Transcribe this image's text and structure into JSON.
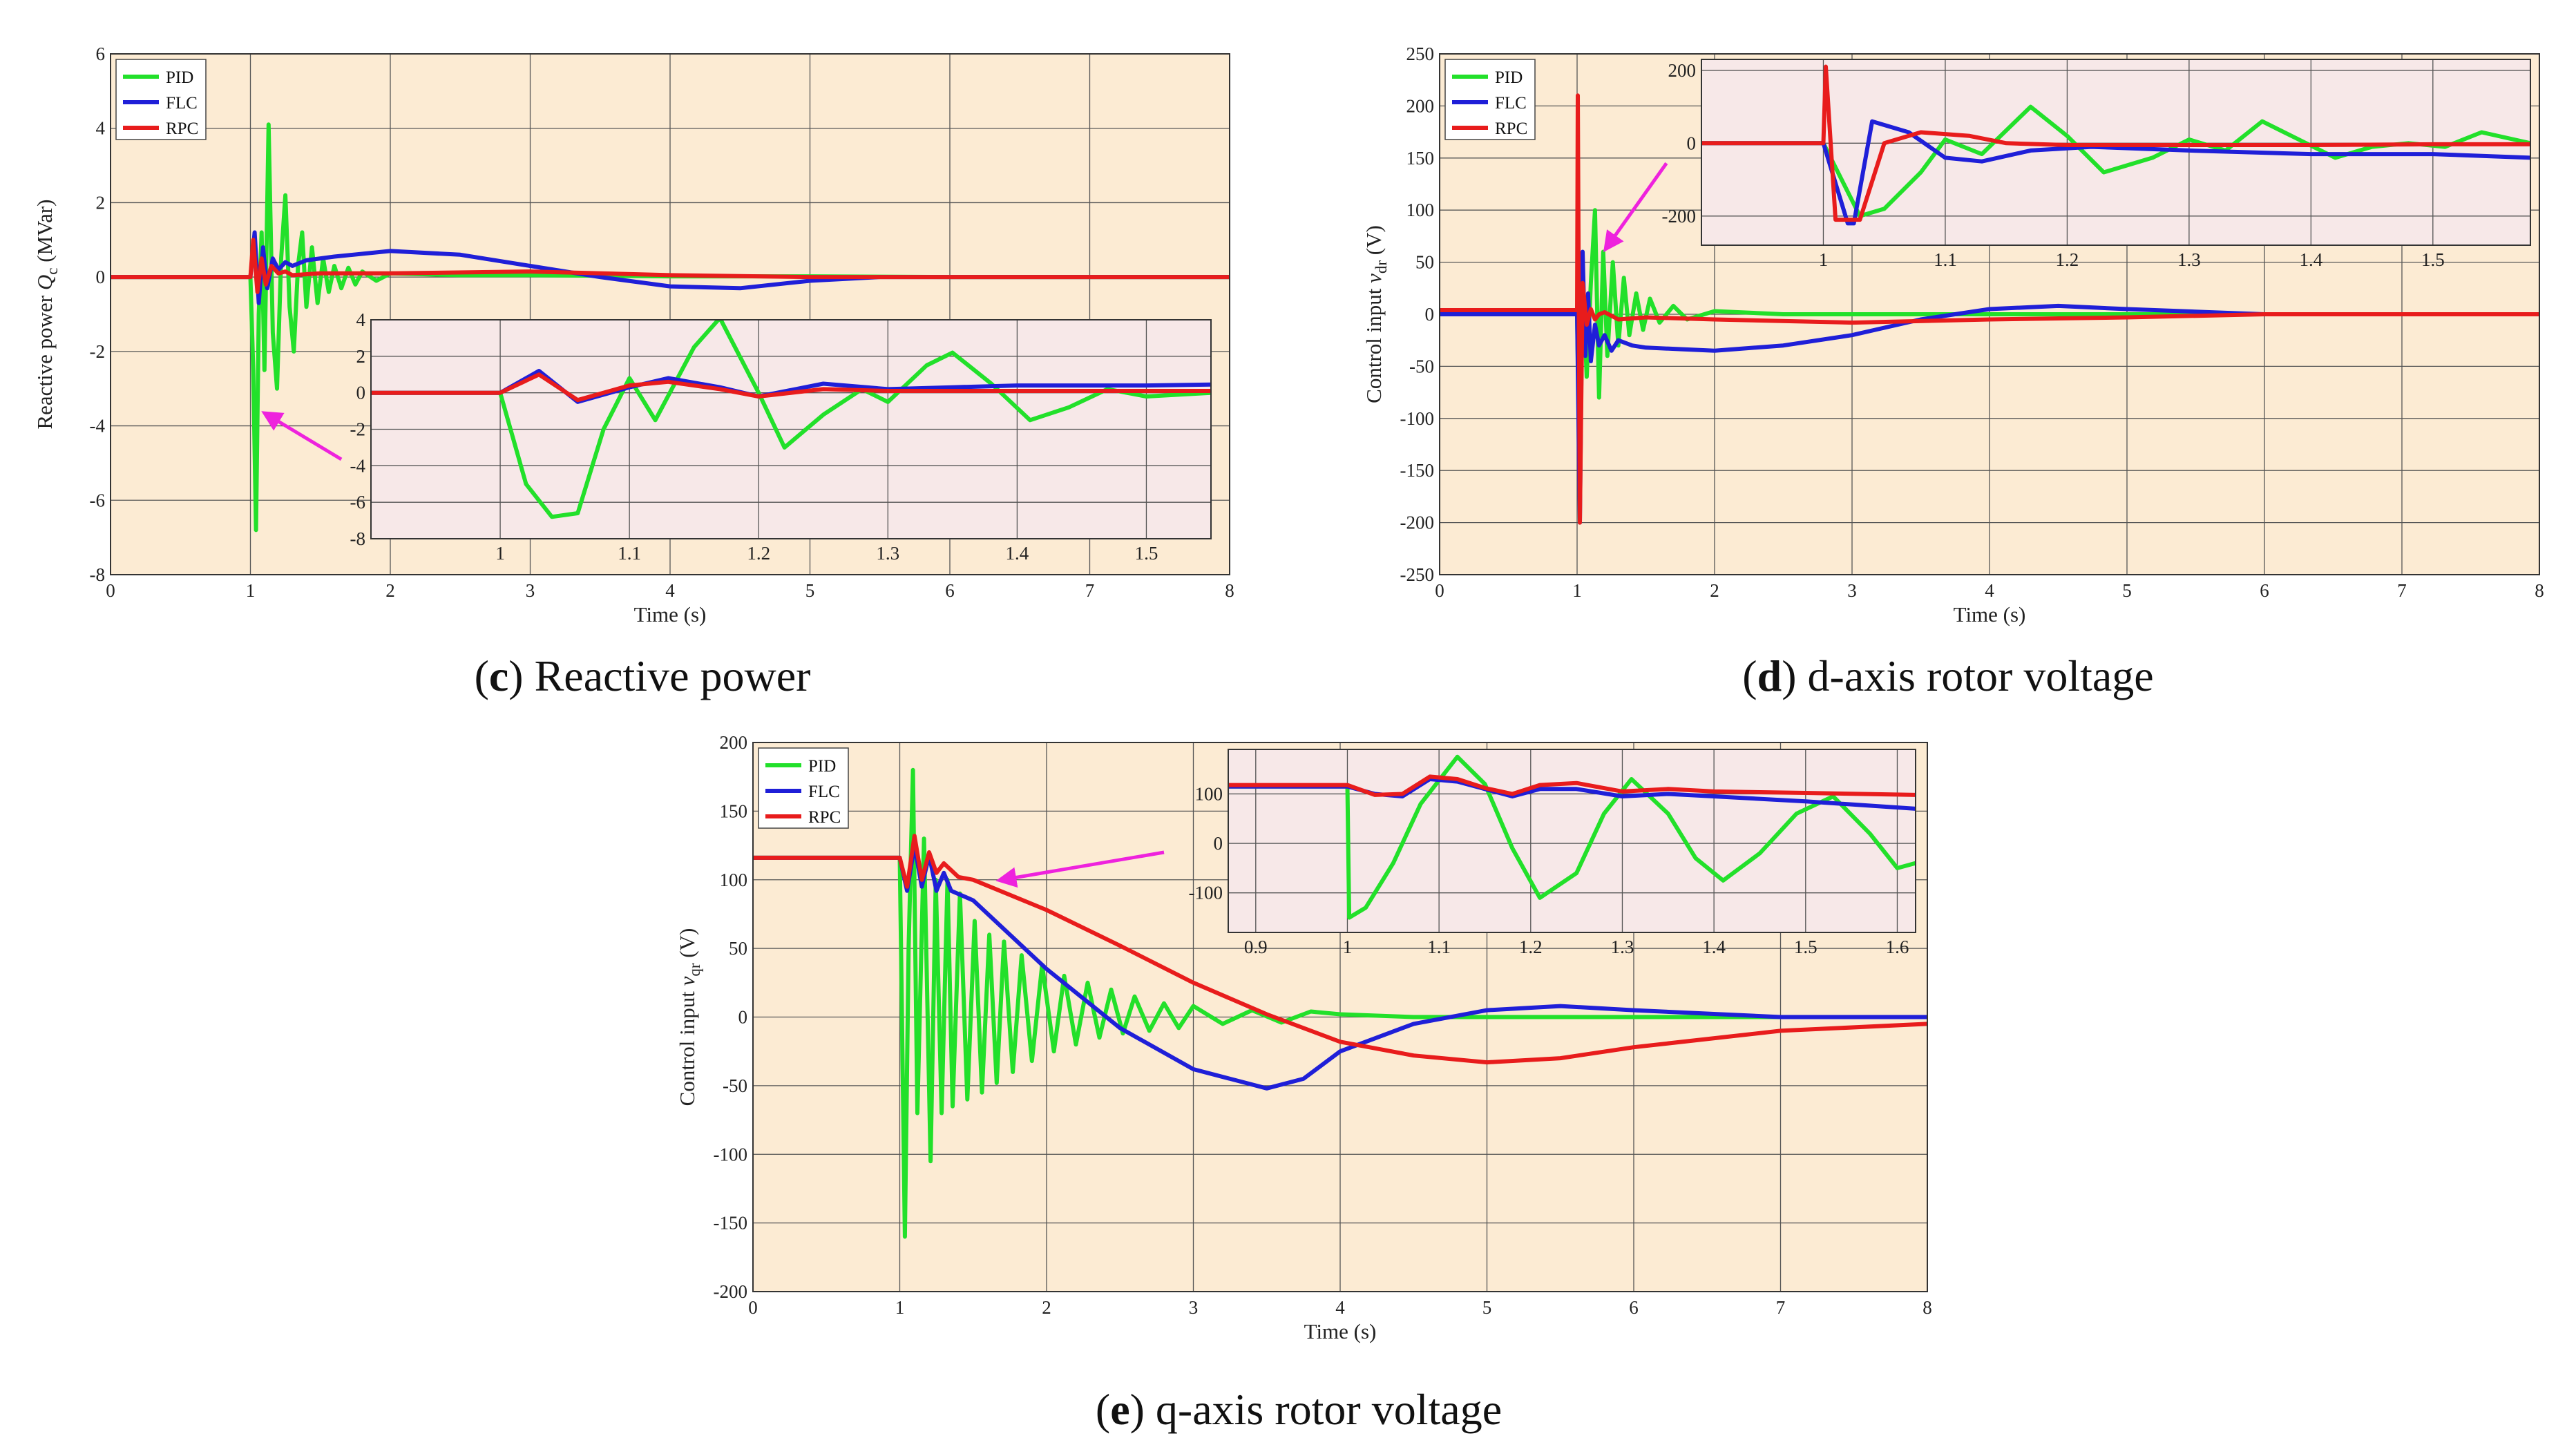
{
  "colors": {
    "PID": "#22e02a",
    "FLC": "#1f1fd8",
    "RPC": "#e81c1c",
    "plot_bg": "#fcebd3",
    "inset_bg": "#f7e8e8",
    "arrow": "#ee22dd"
  },
  "legend": [
    "PID",
    "FLC",
    "RPC"
  ],
  "chart_data": [
    {
      "id": "c",
      "type": "line",
      "caption_letter": "c",
      "caption_text": " Reactive power",
      "xlabel": "Time (s)",
      "ylabel_main": "Reactive power",
      "ylabel_var": "Q",
      "ylabel_sub": "c",
      "ylabel_unit": "(MVar)",
      "xlim": [
        0,
        8
      ],
      "ylim": [
        -8,
        6
      ],
      "xticks": [
        0,
        1,
        2,
        3,
        4,
        5,
        6,
        7,
        8
      ],
      "yticks": [
        -8,
        -6,
        -4,
        -2,
        0,
        2,
        4,
        6
      ],
      "series": [
        {
          "name": "PID",
          "x": [
            0,
            1.0,
            1.02,
            1.04,
            1.06,
            1.08,
            1.1,
            1.13,
            1.16,
            1.19,
            1.22,
            1.25,
            1.28,
            1.31,
            1.34,
            1.37,
            1.4,
            1.44,
            1.48,
            1.52,
            1.56,
            1.6,
            1.65,
            1.7,
            1.75,
            1.8,
            1.9,
            2.0,
            2.5,
            3.0,
            4.0,
            5.0,
            6.0,
            7.0,
            8.0
          ],
          "y": [
            0,
            0,
            -2.5,
            -6.8,
            -1,
            1.2,
            -2.5,
            4.1,
            -1.5,
            -3.0,
            0.5,
            2.2,
            -0.8,
            -2.0,
            0.3,
            1.2,
            -0.8,
            0.8,
            -0.7,
            0.5,
            -0.4,
            0.3,
            -0.3,
            0.25,
            -0.2,
            0.15,
            -0.1,
            0.1,
            0.05,
            0.05,
            0.02,
            0.02,
            0,
            0,
            0
          ]
        },
        {
          "name": "FLC",
          "x": [
            0,
            1.0,
            1.03,
            1.06,
            1.09,
            1.12,
            1.16,
            1.2,
            1.25,
            1.3,
            1.4,
            1.6,
            2.0,
            2.5,
            3.0,
            3.5,
            4.0,
            4.5,
            5.0,
            5.5,
            6.0,
            7.0,
            8.0
          ],
          "y": [
            0,
            0,
            1.2,
            -0.7,
            0.8,
            -0.3,
            0.5,
            0.2,
            0.4,
            0.3,
            0.45,
            0.55,
            0.7,
            0.6,
            0.3,
            0,
            -0.25,
            -0.3,
            -0.1,
            0,
            0,
            0,
            0
          ]
        },
        {
          "name": "RPC",
          "x": [
            0,
            1.0,
            1.02,
            1.05,
            1.08,
            1.11,
            1.15,
            1.2,
            1.25,
            1.3,
            1.5,
            2.0,
            3.0,
            4.0,
            5.0,
            6.0,
            8.0
          ],
          "y": [
            0,
            0,
            1.0,
            -0.4,
            0.5,
            -0.2,
            0.3,
            0.1,
            0.15,
            0.05,
            0.1,
            0.1,
            0.15,
            0.05,
            0,
            0,
            0
          ]
        }
      ],
      "inset": {
        "xlim": [
          0.9,
          1.55
        ],
        "ylim": [
          -8,
          4
        ],
        "xticks": [
          1,
          1.1,
          1.2,
          1.3,
          1.4,
          1.5
        ],
        "yticks": [
          -8,
          -6,
          -4,
          -2,
          0,
          2,
          4
        ],
        "series": [
          {
            "name": "PID",
            "x": [
              0.9,
              1.0,
              1.02,
              1.04,
              1.06,
              1.08,
              1.1,
              1.12,
              1.15,
              1.17,
              1.2,
              1.22,
              1.25,
              1.28,
              1.3,
              1.33,
              1.35,
              1.38,
              1.41,
              1.44,
              1.47,
              1.5,
              1.55
            ],
            "y": [
              0,
              0,
              -5,
              -6.8,
              -6.6,
              -2,
              0.8,
              -1.5,
              2.5,
              4.1,
              0,
              -3.0,
              -1.2,
              0.2,
              -0.5,
              1.5,
              2.2,
              0.5,
              -1.5,
              -0.8,
              0.2,
              -0.2,
              0
            ]
          },
          {
            "name": "FLC",
            "x": [
              0.9,
              1.0,
              1.03,
              1.06,
              1.1,
              1.13,
              1.17,
              1.2,
              1.25,
              1.3,
              1.35,
              1.4,
              1.5,
              1.55
            ],
            "y": [
              0,
              0,
              1.2,
              -0.5,
              0.3,
              0.8,
              0.3,
              -0.2,
              0.5,
              0.2,
              0.3,
              0.4,
              0.4,
              0.45
            ]
          },
          {
            "name": "RPC",
            "x": [
              0.9,
              1.0,
              1.03,
              1.06,
              1.1,
              1.13,
              1.17,
              1.2,
              1.25,
              1.3,
              1.4,
              1.55
            ],
            "y": [
              0,
              0,
              1.0,
              -0.4,
              0.4,
              0.6,
              0.2,
              -0.2,
              0.2,
              0.1,
              0.1,
              0.1
            ]
          }
        ]
      },
      "arrow_from": [
        1.65,
        -4.9
      ],
      "arrow_to": [
        1.12,
        -3.7
      ]
    },
    {
      "id": "d",
      "type": "line",
      "caption_letter": "d",
      "caption_text": " d-axis rotor voltage",
      "xlabel": "Time (s)",
      "ylabel_main": "Control input",
      "ylabel_var": "v",
      "ylabel_sub": "dr",
      "ylabel_unit": "(V)",
      "xlim": [
        0,
        8
      ],
      "ylim": [
        -250,
        250
      ],
      "xticks": [
        0,
        1,
        2,
        3,
        4,
        5,
        6,
        7,
        8
      ],
      "yticks": [
        -250,
        -200,
        -150,
        -100,
        -50,
        0,
        50,
        100,
        150,
        200,
        250
      ],
      "series": [
        {
          "name": "PID",
          "x": [
            0,
            1.0,
            1.02,
            1.04,
            1.07,
            1.1,
            1.13,
            1.16,
            1.19,
            1.22,
            1.26,
            1.3,
            1.34,
            1.38,
            1.43,
            1.48,
            1.53,
            1.6,
            1.7,
            1.8,
            2.0,
            2.5,
            3.0,
            4.0,
            5.0,
            6.0,
            8.0
          ],
          "y": [
            0,
            0,
            -160,
            40,
            -60,
            30,
            100,
            -80,
            60,
            -40,
            50,
            -30,
            35,
            -20,
            20,
            -15,
            15,
            -8,
            8,
            -5,
            3,
            0,
            0,
            0,
            0,
            0,
            0
          ]
        },
        {
          "name": "FLC",
          "x": [
            0,
            1.0,
            1.02,
            1.04,
            1.06,
            1.08,
            1.1,
            1.13,
            1.16,
            1.2,
            1.25,
            1.3,
            1.4,
            1.5,
            2.0,
            2.5,
            3.0,
            3.5,
            4.0,
            4.5,
            5.0,
            6.0,
            8.0
          ],
          "y": [
            0,
            0,
            -200,
            60,
            -40,
            20,
            -45,
            -10,
            -30,
            -20,
            -35,
            -25,
            -30,
            -32,
            -35,
            -30,
            -20,
            -5,
            5,
            8,
            5,
            0,
            0
          ]
        },
        {
          "name": "RPC",
          "x": [
            0,
            1.0,
            1.005,
            1.02,
            1.04,
            1.07,
            1.1,
            1.13,
            1.16,
            1.2,
            1.3,
            1.5,
            2.0,
            3.0,
            4.0,
            5.0,
            6.0,
            8.0
          ],
          "y": [
            4,
            4,
            210,
            -200,
            30,
            -10,
            5,
            -5,
            0,
            2,
            -5,
            -3,
            -5,
            -8,
            -5,
            -3,
            0,
            0
          ]
        }
      ],
      "inset": {
        "xlim": [
          0.9,
          1.58
        ],
        "ylim": [
          -280,
          230
        ],
        "xticks": [
          1,
          1.1,
          1.2,
          1.3,
          1.4,
          1.5
        ],
        "yticks": [
          -200,
          0,
          200
        ],
        "series": [
          {
            "name": "PID",
            "x": [
              0.9,
              1.0,
              1.03,
              1.05,
              1.08,
              1.1,
              1.13,
              1.17,
              1.2,
              1.23,
              1.27,
              1.3,
              1.33,
              1.36,
              1.39,
              1.42,
              1.45,
              1.48,
              1.51,
              1.54,
              1.58
            ],
            "y": [
              0,
              0,
              -200,
              -180,
              -80,
              10,
              -30,
              100,
              20,
              -80,
              -40,
              10,
              -20,
              60,
              10,
              -40,
              -10,
              0,
              -10,
              30,
              0
            ]
          },
          {
            "name": "FLC",
            "x": [
              0.9,
              1.0,
              1.02,
              1.025,
              1.04,
              1.07,
              1.1,
              1.13,
              1.17,
              1.22,
              1.3,
              1.4,
              1.5,
              1.58
            ],
            "y": [
              0,
              0,
              -220,
              -220,
              60,
              30,
              -40,
              -50,
              -20,
              -10,
              -20,
              -30,
              -30,
              -40
            ]
          },
          {
            "name": "RPC",
            "x": [
              0.9,
              1.0,
              1.002,
              1.01,
              1.03,
              1.05,
              1.08,
              1.12,
              1.15,
              1.2,
              1.3,
              1.4,
              1.5,
              1.58
            ],
            "y": [
              0,
              0,
              210,
              -210,
              -210,
              0,
              30,
              20,
              0,
              -5,
              -5,
              -5,
              -3,
              -3
            ]
          }
        ]
      },
      "arrow_from": [
        1.65,
        145
      ],
      "arrow_to": [
        1.22,
        65
      ]
    },
    {
      "id": "e",
      "type": "line",
      "caption_letter": "e",
      "caption_text": " q-axis rotor voltage",
      "xlabel": "Time (s)",
      "ylabel_main": "Control input",
      "ylabel_var": "v",
      "ylabel_sub": "qr",
      "ylabel_unit": "(V)",
      "xlim": [
        0,
        8
      ],
      "ylim": [
        -200,
        200
      ],
      "xticks": [
        0,
        1,
        2,
        3,
        4,
        5,
        6,
        7,
        8
      ],
      "yticks": [
        -200,
        -150,
        -100,
        -50,
        0,
        50,
        100,
        150,
        200
      ],
      "series": [
        {
          "name": "PID",
          "x": [
            0,
            1.0,
            1.01,
            1.035,
            1.06,
            1.09,
            1.12,
            1.165,
            1.21,
            1.245,
            1.285,
            1.325,
            1.36,
            1.41,
            1.46,
            1.51,
            1.56,
            1.61,
            1.66,
            1.71,
            1.77,
            1.83,
            1.9,
            1.97,
            2.05,
            2.12,
            2.2,
            2.28,
            2.36,
            2.44,
            2.52,
            2.6,
            2.7,
            2.8,
            2.9,
            3.0,
            3.2,
            3.4,
            3.6,
            3.8,
            4.0,
            4.5,
            5.0,
            6.0,
            7.0,
            8.0
          ],
          "y": [
            116,
            116,
            40,
            -160,
            50,
            180,
            -70,
            130,
            -105,
            100,
            -70,
            100,
            -65,
            90,
            -60,
            70,
            -55,
            60,
            -48,
            55,
            -40,
            45,
            -32,
            38,
            -25,
            30,
            -20,
            25,
            -15,
            20,
            -12,
            15,
            -10,
            10,
            -8,
            8,
            -5,
            5,
            -4,
            4,
            2,
            0,
            0,
            0,
            0,
            0
          ]
        },
        {
          "name": "FLC",
          "x": [
            0,
            1.0,
            1.05,
            1.1,
            1.15,
            1.2,
            1.25,
            1.3,
            1.35,
            1.5,
            2.0,
            2.5,
            3.0,
            3.5,
            3.75,
            4.0,
            4.5,
            5.0,
            5.5,
            6.0,
            7.0,
            8.0
          ],
          "y": [
            116,
            116,
            92,
            125,
            95,
            118,
            92,
            105,
            92,
            85,
            35,
            -8,
            -38,
            -52,
            -45,
            -25,
            -5,
            5,
            8,
            5,
            0,
            0
          ]
        },
        {
          "name": "RPC",
          "x": [
            0,
            1.0,
            1.05,
            1.1,
            1.15,
            1.2,
            1.25,
            1.3,
            1.4,
            1.5,
            2.0,
            2.5,
            3.0,
            3.5,
            4.0,
            4.5,
            5.0,
            5.5,
            6.0,
            7.0,
            8.0
          ],
          "y": [
            116,
            116,
            95,
            132,
            100,
            120,
            105,
            112,
            102,
            100,
            78,
            52,
            25,
            2,
            -18,
            -28,
            -33,
            -30,
            -22,
            -10,
            -5
          ]
        }
      ],
      "inset": {
        "xlim": [
          0.87,
          1.62
        ],
        "ylim": [
          -180,
          190
        ],
        "xticks": [
          0.9,
          1,
          1.1,
          1.2,
          1.3,
          1.4,
          1.5,
          1.6
        ],
        "yticks": [
          -100,
          0,
          100
        ],
        "series": [
          {
            "name": "PID",
            "x": [
              0.87,
              1.0,
              1.002,
              1.02,
              1.05,
              1.08,
              1.12,
              1.15,
              1.18,
              1.21,
              1.25,
              1.28,
              1.31,
              1.35,
              1.38,
              1.41,
              1.45,
              1.49,
              1.53,
              1.57,
              1.6,
              1.62
            ],
            "y": [
              115,
              115,
              -150,
              -130,
              -40,
              80,
              175,
              120,
              -10,
              -110,
              -60,
              60,
              130,
              60,
              -30,
              -75,
              -20,
              60,
              95,
              20,
              -50,
              -40
            ]
          },
          {
            "name": "FLC",
            "x": [
              0.87,
              1.0,
              1.03,
              1.06,
              1.09,
              1.12,
              1.15,
              1.18,
              1.21,
              1.25,
              1.3,
              1.35,
              1.4,
              1.5,
              1.62
            ],
            "y": [
              115,
              115,
              100,
              95,
              130,
              125,
              110,
              95,
              110,
              110,
              95,
              100,
              95,
              85,
              70
            ]
          },
          {
            "name": "RPC",
            "x": [
              0.87,
              1.0,
              1.03,
              1.06,
              1.09,
              1.12,
              1.15,
              1.18,
              1.21,
              1.25,
              1.3,
              1.35,
              1.4,
              1.5,
              1.62
            ],
            "y": [
              118,
              118,
              98,
              100,
              135,
              130,
              112,
              100,
              118,
              122,
              105,
              110,
              105,
              102,
              98
            ]
          }
        ]
      },
      "arrow_from": [
        2.8,
        120
      ],
      "arrow_to": [
        1.7,
        100
      ]
    }
  ]
}
